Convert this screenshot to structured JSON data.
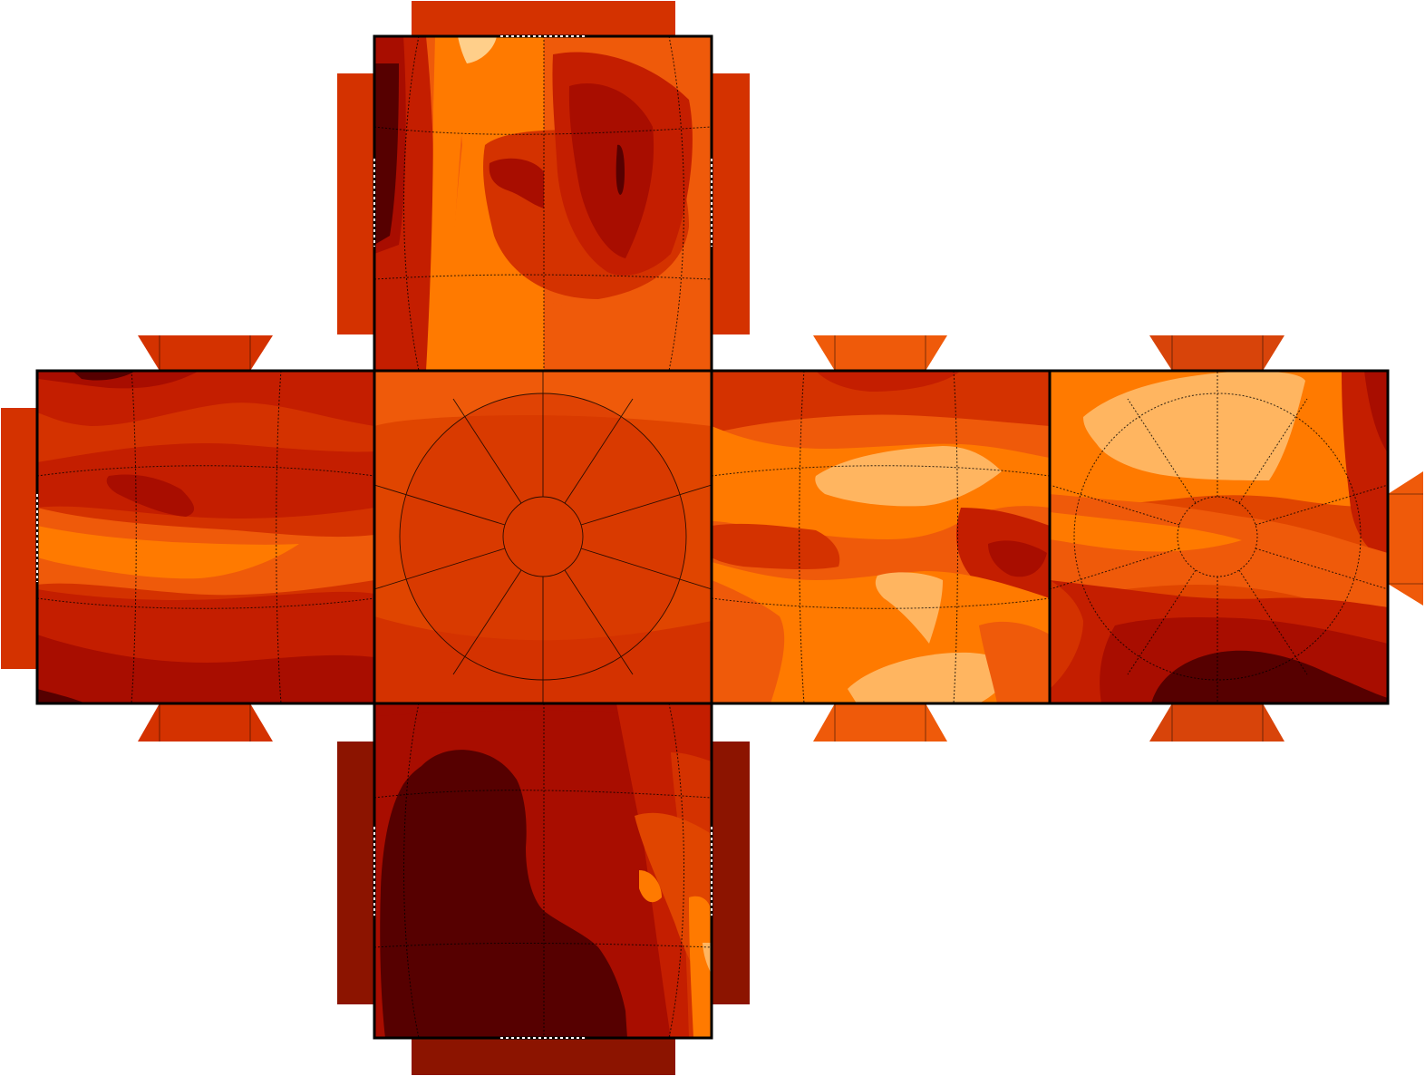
{
  "figure": {
    "kind": "cube-sphere net of six map faces with filled contours",
    "palette": {
      "darkest": "#560000",
      "dark": "#8c1400",
      "deep": "#a80d00",
      "red": "#c41e00",
      "red_orange": "#d43200",
      "orange_red": "#e04500",
      "orange": "#ef5a0a",
      "bright_orange": "#ff7a00",
      "light_orange": "#ffb560",
      "pale": "#ffcf8a",
      "frame": "#000000",
      "graticule": "#000000"
    },
    "faces": [
      {
        "id": "top",
        "base_color": "#ef5a0a"
      },
      {
        "id": "west",
        "base_color": "#d43200"
      },
      {
        "id": "center",
        "base_color": "#e04500"
      },
      {
        "id": "east",
        "base_color": "#ef5a0a"
      },
      {
        "id": "far-east",
        "base_color": "#e04500"
      },
      {
        "id": "bottom",
        "base_color": "#a80d00"
      }
    ],
    "tabs": [
      {
        "face": "top",
        "side": "top",
        "color": "#d43200"
      },
      {
        "face": "top",
        "side": "left",
        "color": "#d43200"
      },
      {
        "face": "top",
        "side": "right",
        "color": "#d43200"
      },
      {
        "face": "west",
        "side": "left",
        "color": "#d43200"
      },
      {
        "face": "west",
        "side": "top",
        "color": "#d43200"
      },
      {
        "face": "west",
        "side": "bottom",
        "color": "#d43200"
      },
      {
        "face": "east",
        "side": "top",
        "color": "#ef5a0a"
      },
      {
        "face": "east",
        "side": "bottom",
        "color": "#ef5a0a"
      },
      {
        "face": "far-east",
        "side": "top",
        "color": "#d8440a"
      },
      {
        "face": "far-east",
        "side": "bottom",
        "color": "#d8440a"
      },
      {
        "face": "far-east",
        "side": "right",
        "color": "#ef5a0a"
      },
      {
        "face": "bottom",
        "side": "bottom",
        "color": "#8c1400"
      },
      {
        "face": "bottom",
        "side": "left",
        "color": "#8c1400"
      },
      {
        "face": "bottom",
        "side": "right",
        "color": "#8c1400"
      }
    ]
  }
}
